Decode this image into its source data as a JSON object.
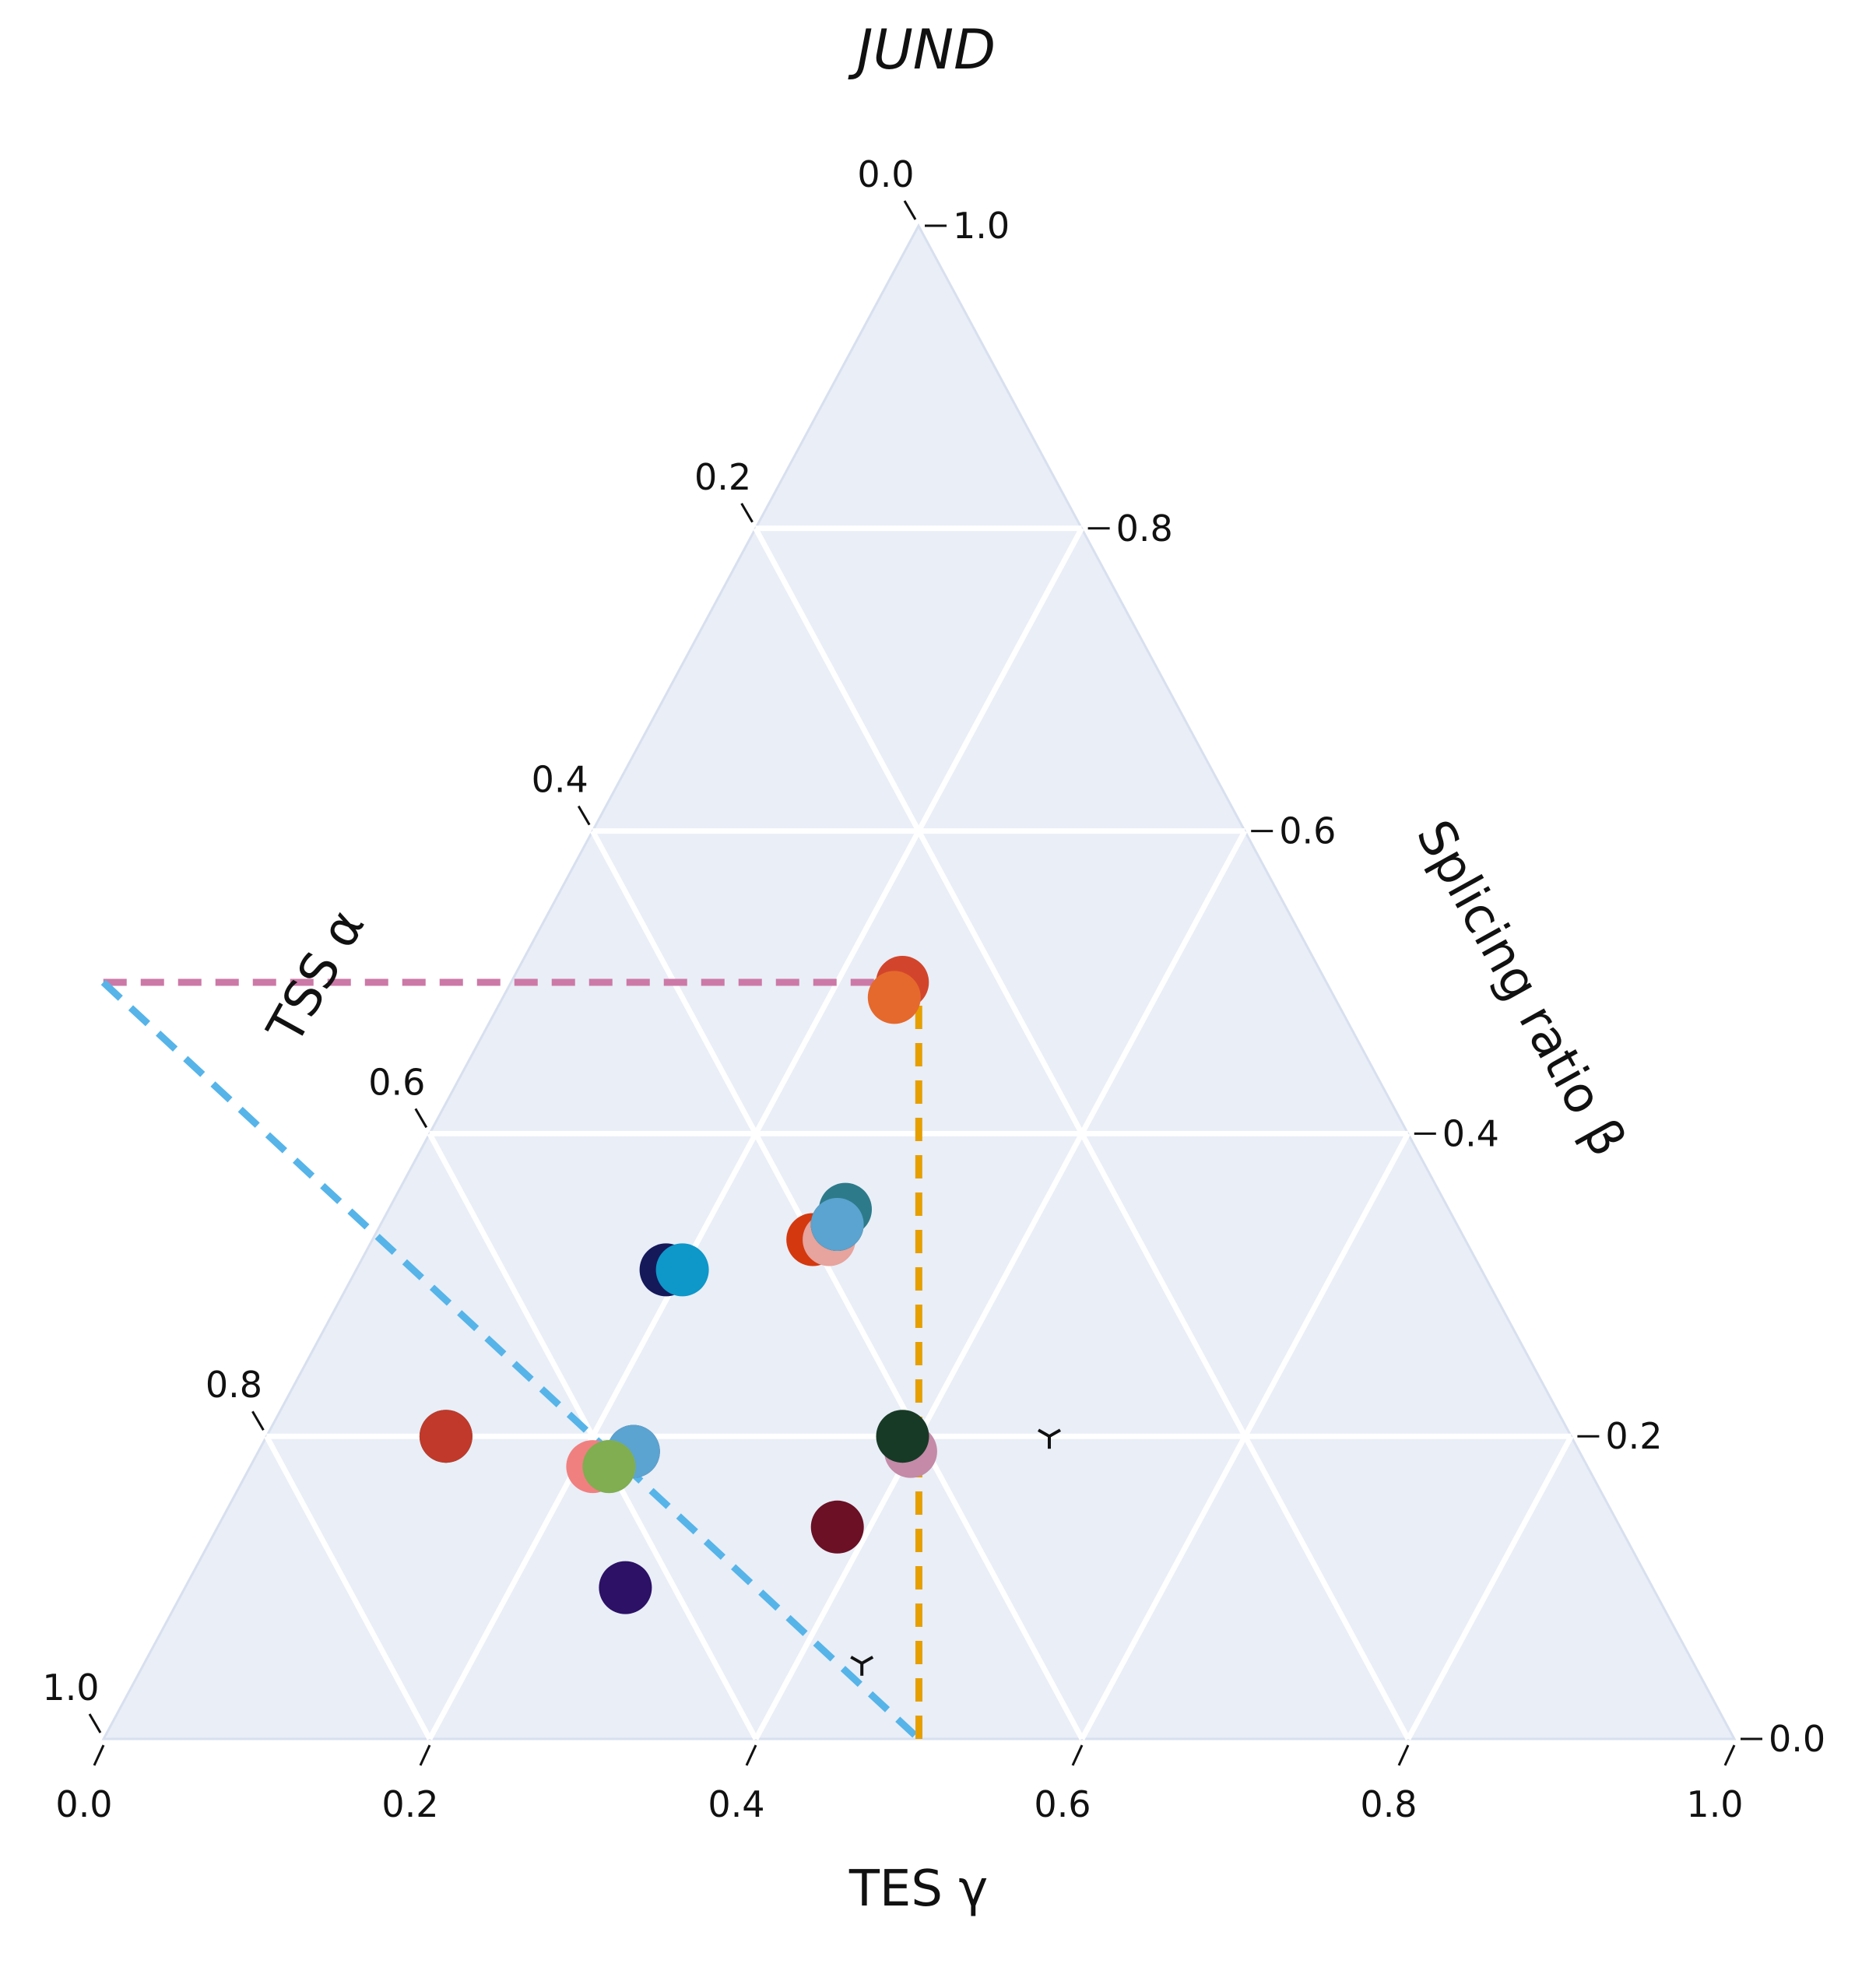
{
  "chart_data": {
    "type": "scatter",
    "subtype": "ternary",
    "title": "JUND",
    "axes": {
      "alpha": {
        "label": "TSS α",
        "side": "left",
        "range": [
          0,
          1
        ],
        "ticks": [
          "0.0",
          "0.2",
          "0.4",
          "0.6",
          "0.8",
          "1.0"
        ]
      },
      "beta": {
        "label": "Splicing ratio β",
        "side": "right",
        "range": [
          0,
          1
        ],
        "ticks": [
          "0.0",
          "0.2",
          "0.4",
          "0.6",
          "0.8",
          "1.0"
        ]
      },
      "gamma": {
        "label": "TES γ",
        "side": "bottom",
        "range": [
          0,
          1
        ],
        "ticks": [
          "0.0",
          "0.2",
          "0.4",
          "0.6",
          "0.8",
          "1.0"
        ]
      }
    },
    "grid": true,
    "grid_step": 0.2,
    "background_color": "#e9eef7",
    "grid_color": "#ffffff",
    "reference_lines": [
      {
        "name": "beta-threshold",
        "color": "#cc79a7",
        "style": "dashed",
        "from": {
          "alpha": 0.75,
          "beta": 0.5,
          "gamma": -0.25
        },
        "to": {
          "alpha": 0.25,
          "beta": 0.5,
          "gamma": 0.25
        }
      },
      {
        "name": "alpha-threshold",
        "color": "#56b4e9",
        "style": "dashed",
        "from": {
          "alpha": 0.75,
          "beta": 0.5,
          "gamma": -0.25
        },
        "to": {
          "alpha": 0.5,
          "beta": 0.0,
          "gamma": 0.5
        }
      },
      {
        "name": "gamma-threshold",
        "color": "#e69f00",
        "style": "dashed",
        "from": {
          "alpha": 0.5,
          "beta": 0.0,
          "gamma": 0.5
        },
        "to": {
          "alpha": 0.25,
          "beta": 0.5,
          "gamma": 0.25
        }
      }
    ],
    "center_markers": [
      {
        "alpha": 0.32,
        "beta": 0.2,
        "gamma": 0.48
      },
      {
        "alpha": 0.51,
        "beta": 0.05,
        "gamma": 0.44
      }
    ],
    "points": [
      {
        "alpha": 0.26,
        "beta": 0.5,
        "gamma": 0.24,
        "color": "#d2452c"
      },
      {
        "alpha": 0.27,
        "beta": 0.49,
        "gamma": 0.24,
        "color": "#e5692c"
      },
      {
        "alpha": 0.4,
        "beta": 0.33,
        "gamma": 0.27,
        "color": "#d4380f"
      },
      {
        "alpha": 0.39,
        "beta": 0.33,
        "gamma": 0.28,
        "color": "#e7a39d"
      },
      {
        "alpha": 0.38,
        "beta": 0.34,
        "gamma": 0.28,
        "color": "#b82020"
      },
      {
        "alpha": 0.38,
        "beta": 0.34,
        "gamma": 0.28,
        "color": "#6a2c91"
      },
      {
        "alpha": 0.38,
        "beta": 0.34,
        "gamma": 0.28,
        "color": "#00a020"
      },
      {
        "alpha": 0.37,
        "beta": 0.35,
        "gamma": 0.28,
        "color": "#2d7a8a"
      },
      {
        "alpha": 0.38,
        "beta": 0.34,
        "gamma": 0.28,
        "color": "#5ba3d0"
      },
      {
        "alpha": 0.5,
        "beta": 0.31,
        "gamma": 0.19,
        "color": "#15195a"
      },
      {
        "alpha": 0.49,
        "beta": 0.31,
        "gamma": 0.2,
        "color": "#0e97c9"
      },
      {
        "alpha": 0.69,
        "beta": 0.2,
        "gamma": 0.11,
        "color": "#1f5e2e"
      },
      {
        "alpha": 0.69,
        "beta": 0.2,
        "gamma": 0.11,
        "color": "#c0392b"
      },
      {
        "alpha": 0.58,
        "beta": 0.19,
        "gamma": 0.23,
        "color": "#2b2b6a"
      },
      {
        "alpha": 0.58,
        "beta": 0.19,
        "gamma": 0.23,
        "color": "#5ba3d0"
      },
      {
        "alpha": 0.6,
        "beta": 0.18,
        "gamma": 0.22,
        "color": "#7dc2a8"
      },
      {
        "alpha": 0.61,
        "beta": 0.18,
        "gamma": 0.21,
        "color": "#f08080"
      },
      {
        "alpha": 0.6,
        "beta": 0.18,
        "gamma": 0.22,
        "color": "#80ae50"
      },
      {
        "alpha": 0.41,
        "beta": 0.19,
        "gamma": 0.4,
        "color": "#c48aa8"
      },
      {
        "alpha": 0.41,
        "beta": 0.2,
        "gamma": 0.39,
        "color": "#173a26"
      },
      {
        "alpha": 0.48,
        "beta": 0.14,
        "gamma": 0.38,
        "color": "#6b1025"
      },
      {
        "alpha": 0.63,
        "beta": 0.1,
        "gamma": 0.27,
        "color": "#2c1166"
      }
    ]
  }
}
